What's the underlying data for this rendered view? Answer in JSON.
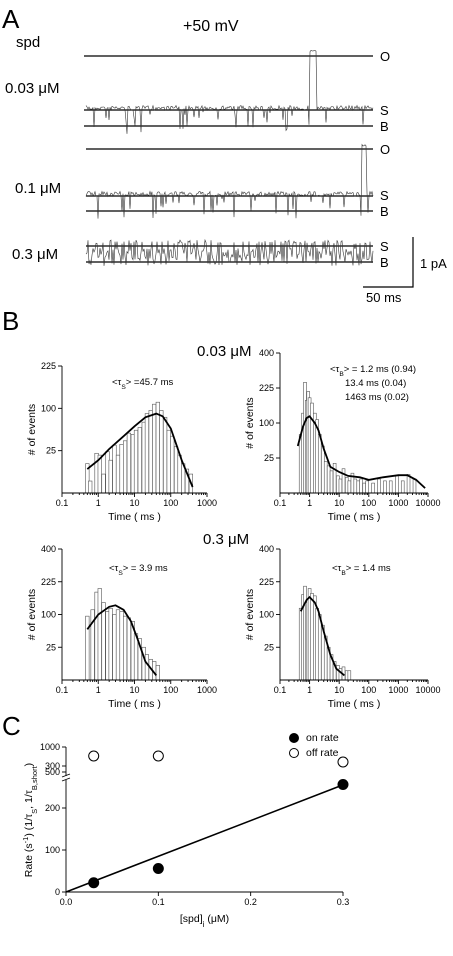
{
  "panel_a": {
    "letter": "A",
    "spd_label": "spd",
    "voltage": "+50 mV",
    "rows": [
      {
        "conc": "0.03 μM",
        "levels": [
          "O",
          "S",
          "B"
        ]
      },
      {
        "conc": "0.1 μM",
        "levels": [
          "O",
          "S",
          "B"
        ]
      },
      {
        "conc": "0.3 μM",
        "levels": [
          "S",
          "B"
        ]
      }
    ],
    "scale_y": "1 pA",
    "scale_x": "50 ms"
  },
  "panel_b": {
    "letter": "B",
    "group_titles": [
      "0.03 μM",
      "0.3 μM"
    ]
  },
  "panel_c": {
    "letter": "C"
  },
  "chart_data": [
    {
      "type": "bar",
      "id": "B1",
      "xscale": "log",
      "xlim": [
        0.1,
        1000
      ],
      "xticks": [
        "0.1",
        "1",
        "10",
        "100",
        "1000"
      ],
      "yscale": "sqrt",
      "ylim": [
        0,
        225
      ],
      "yticks": [
        "25",
        "100",
        "225"
      ],
      "xlabel": "Time ( ms )",
      "ylabel": "# of events",
      "annotation": {
        "pre": "<τ",
        "sub": "S",
        "post": "> =45.7 ms"
      },
      "bins": [
        [
          0.5,
          12
        ],
        [
          0.6,
          2
        ],
        [
          0.9,
          22
        ],
        [
          1.1,
          20
        ],
        [
          1.4,
          5
        ],
        [
          1.8,
          24
        ],
        [
          2.2,
          15
        ],
        [
          2.8,
          32
        ],
        [
          3.5,
          20
        ],
        [
          4.4,
          33
        ],
        [
          5.5,
          38
        ],
        [
          7,
          50
        ],
        [
          9,
          48
        ],
        [
          11,
          55
        ],
        [
          14,
          60
        ],
        [
          18,
          70
        ],
        [
          22,
          88
        ],
        [
          28,
          95
        ],
        [
          35,
          110
        ],
        [
          44,
          115
        ],
        [
          55,
          95
        ],
        [
          70,
          80
        ],
        [
          88,
          55
        ],
        [
          110,
          45
        ],
        [
          140,
          30
        ],
        [
          175,
          20
        ],
        [
          220,
          12
        ],
        [
          280,
          8
        ],
        [
          360,
          5
        ]
      ],
      "fit": [
        [
          0.5,
          8
        ],
        [
          1,
          15
        ],
        [
          2,
          27
        ],
        [
          5,
          45
        ],
        [
          10,
          62
        ],
        [
          20,
          80
        ],
        [
          40,
          88
        ],
        [
          60,
          82
        ],
        [
          100,
          58
        ],
        [
          200,
          15
        ],
        [
          400,
          0.5
        ]
      ]
    },
    {
      "type": "bar",
      "id": "B2",
      "xscale": "log",
      "xlim": [
        0.1,
        10000
      ],
      "xticks": [
        "0.1",
        "1",
        "10",
        "100",
        "1000",
        "10000"
      ],
      "yscale": "sqrt",
      "ylim": [
        0,
        400
      ],
      "yticks": [
        "25",
        "100",
        "225",
        "400"
      ],
      "xlabel": "Time ( ms )",
      "ylabel": "# of events",
      "annotation_lines": [
        {
          "pre": "<τ",
          "sub": "B",
          "post": "> = 1.2 ms (0.94)"
        },
        {
          "pre": "",
          "sub": "",
          "post": "13.4 ms (0.04)"
        },
        {
          "pre": "",
          "sub": "",
          "post": "1463 ms (0.02)"
        }
      ],
      "bins": [
        [
          0.5,
          70
        ],
        [
          0.6,
          130
        ],
        [
          0.7,
          250
        ],
        [
          0.8,
          175
        ],
        [
          0.9,
          210
        ],
        [
          1.0,
          185
        ],
        [
          1.2,
          165
        ],
        [
          1.5,
          130
        ],
        [
          1.8,
          110
        ],
        [
          2.2,
          70
        ],
        [
          2.8,
          45
        ],
        [
          3.5,
          20
        ],
        [
          4.4,
          15
        ],
        [
          5.5,
          10
        ],
        [
          7,
          18
        ],
        [
          9,
          6
        ],
        [
          11,
          4
        ],
        [
          14,
          12
        ],
        [
          18,
          5
        ],
        [
          22,
          3
        ],
        [
          28,
          8
        ],
        [
          35,
          4
        ],
        [
          44,
          3
        ],
        [
          55,
          4
        ],
        [
          70,
          2
        ],
        [
          88,
          3
        ],
        [
          140,
          2
        ],
        [
          220,
          4
        ],
        [
          350,
          3
        ],
        [
          550,
          3
        ],
        [
          900,
          6
        ],
        [
          1400,
          3
        ],
        [
          2200,
          7
        ],
        [
          3500,
          4
        ]
      ],
      "fit": [
        [
          0.4,
          45
        ],
        [
          0.6,
          90
        ],
        [
          0.8,
          115
        ],
        [
          1,
          120
        ],
        [
          1.5,
          100
        ],
        [
          2,
          80
        ],
        [
          3,
          40
        ],
        [
          5,
          14
        ],
        [
          10,
          9
        ],
        [
          20,
          6
        ],
        [
          50,
          5
        ],
        [
          100,
          3.5
        ],
        [
          300,
          5
        ],
        [
          1000,
          6.5
        ],
        [
          2000,
          6.5
        ],
        [
          4000,
          3.5
        ],
        [
          8000,
          0.5
        ]
      ]
    },
    {
      "type": "bar",
      "id": "B3",
      "xscale": "log",
      "xlim": [
        0.1,
        1000
      ],
      "xticks": [
        "0.1",
        "1",
        "10",
        "100",
        "1000"
      ],
      "yscale": "sqrt",
      "ylim": [
        0,
        400
      ],
      "yticks": [
        "25",
        "100",
        "225",
        "400"
      ],
      "xlabel": "Time ( ms )",
      "ylabel": "# of events",
      "annotation": {
        "pre": "<τ",
        "sub": "S",
        "post": "> = 3.9 ms"
      },
      "bins": [
        [
          0.5,
          95
        ],
        [
          0.7,
          115
        ],
        [
          0.9,
          180
        ],
        [
          1.1,
          195
        ],
        [
          1.4,
          140
        ],
        [
          1.8,
          110
        ],
        [
          2.2,
          120
        ],
        [
          2.8,
          100
        ],
        [
          3.5,
          115
        ],
        [
          4.4,
          110
        ],
        [
          5.5,
          95
        ],
        [
          7,
          90
        ],
        [
          9,
          80
        ],
        [
          11,
          50
        ],
        [
          14,
          40
        ],
        [
          18,
          25
        ],
        [
          22,
          15
        ],
        [
          28,
          10
        ],
        [
          35,
          8
        ],
        [
          44,
          5
        ]
      ],
      "fit": [
        [
          0.5,
          60
        ],
        [
          1,
          100
        ],
        [
          2,
          125
        ],
        [
          3,
          130
        ],
        [
          5,
          115
        ],
        [
          8,
          80
        ],
        [
          12,
          40
        ],
        [
          20,
          8
        ],
        [
          40,
          0.5
        ]
      ]
    },
    {
      "type": "bar",
      "id": "B4",
      "xscale": "log",
      "xlim": [
        0.1,
        10000
      ],
      "xticks": [
        "0.1",
        "1",
        "10",
        "100",
        "1000",
        "10000"
      ],
      "yscale": "sqrt",
      "ylim": [
        0,
        400
      ],
      "yticks": [
        "25",
        "100",
        "225",
        "400"
      ],
      "xlabel": "Time ( ms )",
      "ylabel": "# of events",
      "annotation": {
        "pre": "<τ",
        "sub": "B",
        "post": "> = 1.4 ms"
      },
      "bins": [
        [
          0.5,
          120
        ],
        [
          0.6,
          170
        ],
        [
          0.7,
          205
        ],
        [
          0.8,
          140
        ],
        [
          0.9,
          150
        ],
        [
          1.0,
          195
        ],
        [
          1.2,
          175
        ],
        [
          1.5,
          165
        ],
        [
          1.8,
          120
        ],
        [
          2.2,
          100
        ],
        [
          2.8,
          70
        ],
        [
          3.5,
          45
        ],
        [
          4.4,
          25
        ],
        [
          5.5,
          15
        ],
        [
          7,
          8
        ],
        [
          9,
          5
        ],
        [
          11,
          3
        ],
        [
          14,
          4
        ],
        [
          18,
          2
        ],
        [
          22,
          2
        ]
      ],
      "fit": [
        [
          0.5,
          110
        ],
        [
          0.8,
          150
        ],
        [
          1,
          160
        ],
        [
          1.5,
          140
        ],
        [
          2,
          110
        ],
        [
          3,
          55
        ],
        [
          5,
          15
        ],
        [
          8,
          3
        ],
        [
          15,
          0.5
        ]
      ]
    },
    {
      "type": "scatter",
      "id": "C",
      "xlabel": "[spd]i (μM)",
      "ylabel": "Rate (s-1) (1/τS, 1/τB,short)",
      "xlim": [
        0,
        0.3
      ],
      "xticks": [
        "0.0",
        "0.1",
        "0.2",
        "0.3"
      ],
      "ylim": [
        0,
        1000
      ],
      "yticks_lower": [
        "0",
        "100",
        "200",
        "300"
      ],
      "yticks_upper": [
        "500",
        "1000"
      ],
      "legend": "top-right",
      "series": [
        {
          "name": "on rate",
          "marker": "filled",
          "x": [
            0.03,
            0.1,
            0.3
          ],
          "y": [
            22,
            56,
            256
          ]
        },
        {
          "name": "off rate",
          "marker": "open",
          "x": [
            0.03,
            0.1,
            0.3
          ],
          "y": [
            820,
            820,
            700
          ]
        }
      ],
      "fit_line": {
        "x": [
          0,
          0.3
        ],
        "y": [
          0,
          255
        ]
      }
    }
  ]
}
